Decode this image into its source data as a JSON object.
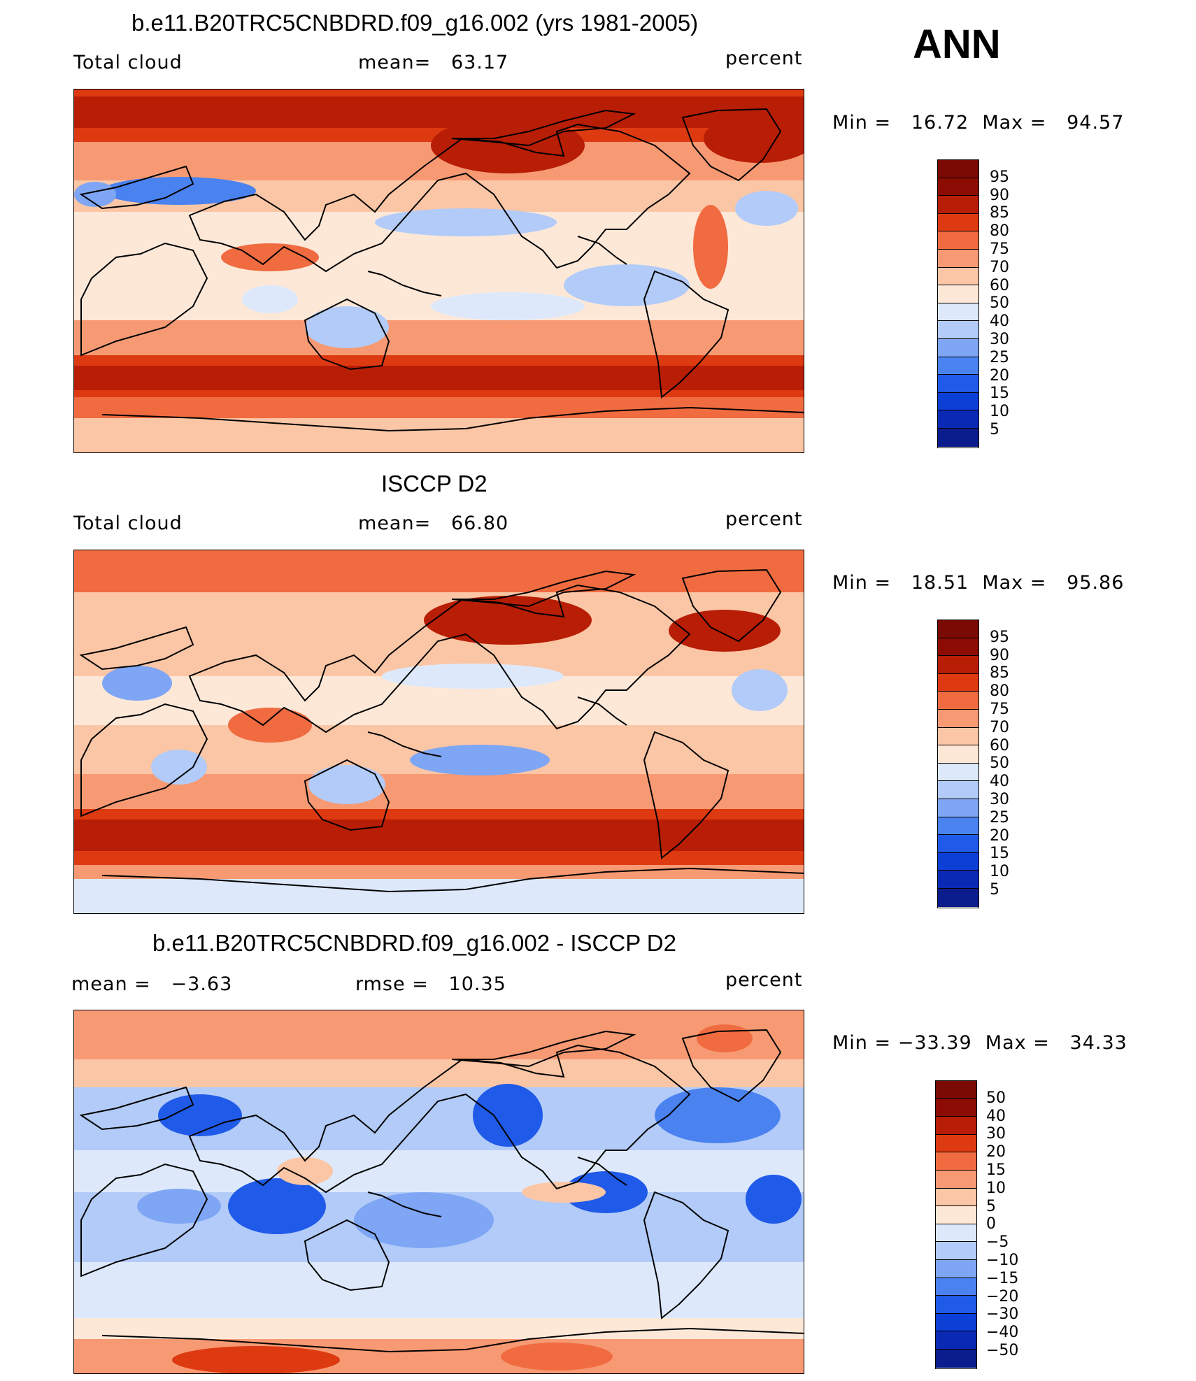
{
  "header": {
    "season": "ANN"
  },
  "colors": {
    "model_scale": [
      "#0b1c8c",
      "#0a2ab6",
      "#0c3fd6",
      "#1f5ae8",
      "#4a82f0",
      "#7ea6f4",
      "#b2cbf8",
      "#dde9fb",
      "#fde8d8",
      "#fbc6a5",
      "#f79a73",
      "#f06b40",
      "#de3a12",
      "#b81d06",
      "#8c0c04"
    ],
    "diff_scale": [
      "#0b1c8c",
      "#0a2ab6",
      "#0c3fd6",
      "#1f5ae8",
      "#4a82f0",
      "#7ea6f4",
      "#b2cbf8",
      "#dde9fb",
      "#fde8d8",
      "#fbc6a5",
      "#f79a73",
      "#f06b40",
      "#de3a12",
      "#b81d06",
      "#8c0c04"
    ],
    "coastline": "#000000"
  },
  "panels": [
    {
      "id": "model",
      "title": "b.e11.B20TRC5CNBDRD.f09_g16.002 (yrs 1981-2005)",
      "left_label": "Total cloud",
      "center_label": "mean=   63.17",
      "units": "percent",
      "minmax": "Min =   16.72  Max =   94.57",
      "colorbar_labels": [
        "95",
        "90",
        "85",
        "80",
        "75",
        "70",
        "60",
        "50",
        "40",
        "30",
        "25",
        "20",
        "15",
        "10",
        "5"
      ]
    },
    {
      "id": "obs",
      "title": "ISCCP D2",
      "left_label": "Total cloud",
      "center_label": "mean=   66.80",
      "units": "percent",
      "minmax": "Min =   18.51  Max =   95.86",
      "colorbar_labels": [
        "95",
        "90",
        "85",
        "80",
        "75",
        "70",
        "60",
        "50",
        "40",
        "30",
        "25",
        "20",
        "15",
        "10",
        "5"
      ]
    },
    {
      "id": "diff",
      "title": "b.e11.B20TRC5CNBDRD.f09_g16.002 - ISCCP D2",
      "left_label": "mean =   −3.63",
      "center_label": "rmse =   10.35",
      "units": "percent",
      "minmax": "Min = −33.39  Max =   34.33",
      "colorbar_labels": [
        "50",
        "40",
        "30",
        "20",
        "15",
        "10",
        "5",
        "0",
        "−5",
        "−10",
        "−15",
        "−20",
        "−30",
        "−40",
        "−50"
      ]
    }
  ]
}
